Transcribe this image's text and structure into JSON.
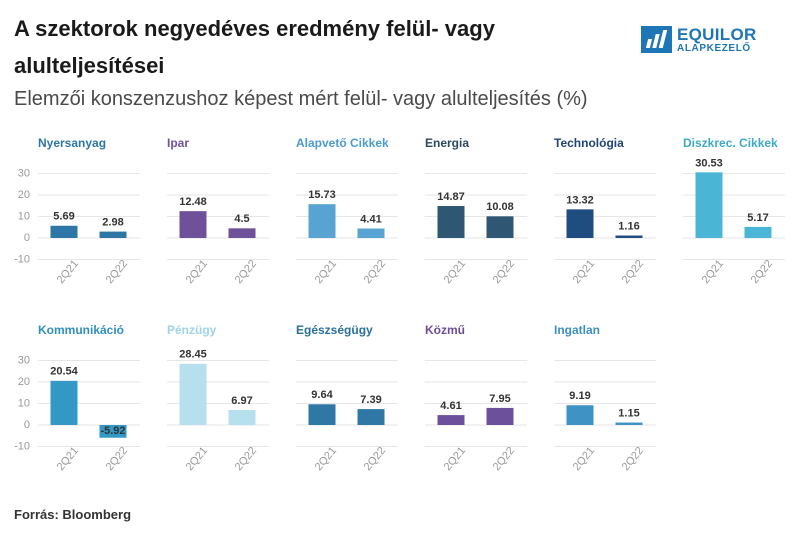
{
  "header": {
    "title": "A szektorok negyedéves eredmény felül- vagy alulteljesítései",
    "subtitle": "Elemzői konszenzushoz képest mért felül- vagy alulteljesítés (%)"
  },
  "logo": {
    "name": "EQUILOR",
    "sub": "ALAPKEZELŐ"
  },
  "footer": {
    "source": "Forrás: Bloomberg"
  },
  "colors": {
    "grid": "#e6e6e6",
    "tick": "#999999",
    "label": "#333333"
  },
  "chart_data": [
    {
      "type": "bar",
      "title": "Nyersanyag",
      "title_color": "#2e76a6",
      "categories": [
        "2Q21",
        "2Q22"
      ],
      "values": [
        5.69,
        2.98
      ],
      "colors": [
        "#2e76a6",
        "#2e76a6"
      ],
      "y_ticks": [
        30,
        20,
        10,
        0,
        -10
      ],
      "ylim": [
        -10,
        30
      ],
      "grid": true
    },
    {
      "type": "bar",
      "title": "Ipar",
      "title_color": "#6f519a",
      "categories": [
        "2Q21",
        "2Q22"
      ],
      "values": [
        12.48,
        4.5
      ],
      "colors": [
        "#6f519a",
        "#6f519a"
      ],
      "ylim": [
        -10,
        30
      ],
      "grid": true
    },
    {
      "type": "bar",
      "title": "Alapvető Cikkek",
      "title_color": "#4a9ccd",
      "categories": [
        "2Q21",
        "2Q22"
      ],
      "values": [
        15.73,
        4.41
      ],
      "colors": [
        "#58a3d1",
        "#58a3d1"
      ],
      "ylim": [
        -10,
        30
      ],
      "grid": true
    },
    {
      "type": "bar",
      "title": "Energia",
      "title_color": "#2b4a60",
      "categories": [
        "2Q21",
        "2Q22"
      ],
      "values": [
        14.87,
        10.08
      ],
      "colors": [
        "#2f5672",
        "#2f5672"
      ],
      "ylim": [
        -10,
        30
      ],
      "grid": true
    },
    {
      "type": "bar",
      "title": "Technológia",
      "title_color": "#1e4574",
      "categories": [
        "2Q21",
        "2Q22"
      ],
      "values": [
        13.32,
        1.16
      ],
      "colors": [
        "#1f4d80",
        "#1f4d80"
      ],
      "ylim": [
        -10,
        30
      ],
      "grid": true
    },
    {
      "type": "bar",
      "title": "Diszkrec. Cikkek",
      "title_color": "#3fa9c9",
      "categories": [
        "2Q21",
        "2Q22"
      ],
      "values": [
        30.53,
        5.17
      ],
      "colors": [
        "#4ab5d4",
        "#4ab5d4"
      ],
      "ylim": [
        -10,
        30
      ],
      "grid": true
    },
    {
      "type": "bar",
      "title": "Kommunikáció",
      "title_color": "#2f8fbf",
      "categories": [
        "2Q21",
        "2Q22"
      ],
      "values": [
        20.54,
        -5.92
      ],
      "colors": [
        "#3399c4",
        "#3399c4"
      ],
      "y_ticks": [
        30,
        20,
        10,
        0,
        -10
      ],
      "ylim": [
        -10,
        30
      ],
      "grid": true
    },
    {
      "type": "bar",
      "title": "Pénzügy",
      "title_color": "#9fd3e6",
      "categories": [
        "2Q21",
        "2Q22"
      ],
      "values": [
        28.45,
        6.97
      ],
      "colors": [
        "#b6e0ee",
        "#b6e0ee"
      ],
      "ylim": [
        -10,
        30
      ],
      "grid": true
    },
    {
      "type": "bar",
      "title": "Egészségügy",
      "title_color": "#2a6f9b",
      "categories": [
        "2Q21",
        "2Q22"
      ],
      "values": [
        9.64,
        7.39
      ],
      "colors": [
        "#2f77a4",
        "#2f77a4"
      ],
      "ylim": [
        -10,
        30
      ],
      "grid": true
    },
    {
      "type": "bar",
      "title": "Közmű",
      "title_color": "#6b4d98",
      "categories": [
        "2Q21",
        "2Q22"
      ],
      "values": [
        4.61,
        7.95
      ],
      "colors": [
        "#6d509c",
        "#6d509c"
      ],
      "ylim": [
        -10,
        30
      ],
      "grid": true
    },
    {
      "type": "bar",
      "title": "Ingatlan",
      "title_color": "#3c8fc0",
      "categories": [
        "2Q21",
        "2Q22"
      ],
      "values": [
        9.19,
        1.15
      ],
      "colors": [
        "#3f93c4",
        "#3f93c4"
      ],
      "ylim": [
        -10,
        30
      ],
      "grid": true
    }
  ]
}
